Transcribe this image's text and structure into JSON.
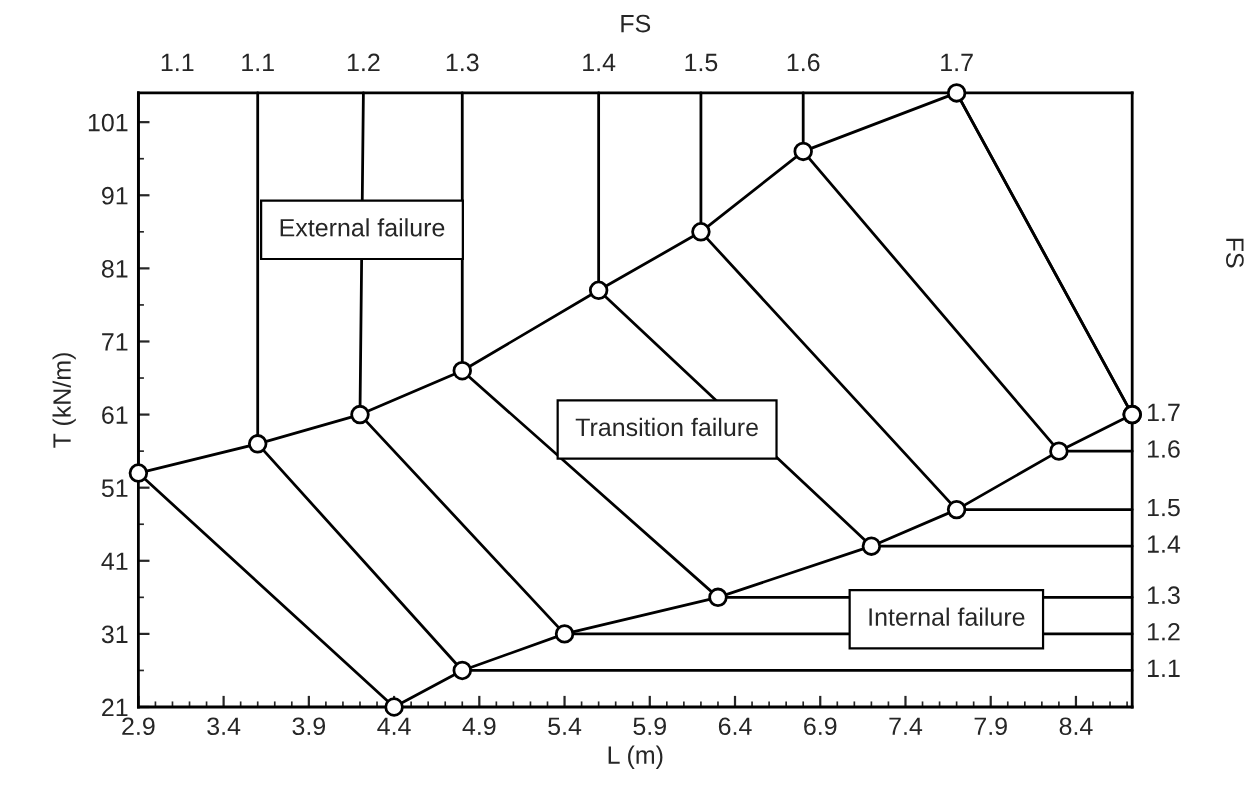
{
  "chart_data": {
    "type": "line",
    "xlabel": "L (m)",
    "ylabel": "T (kN/m)",
    "x2label": "FS",
    "y2label": "FS",
    "xlim": [
      2.9,
      8.73
    ],
    "ylim": [
      21,
      105
    ],
    "xticks": [
      2.9,
      3.4,
      3.9,
      4.4,
      4.9,
      5.4,
      5.9,
      6.4,
      6.9,
      7.4,
      7.9,
      8.4
    ],
    "yticks": [
      21,
      31,
      41,
      51,
      61,
      71,
      81,
      91,
      101
    ],
    "grid": false,
    "legend": false,
    "series": [
      {
        "color": "#000000",
        "marker": "circle",
        "x": [
          2.9,
          3.6,
          4.2,
          4.8,
          5.6,
          6.2,
          6.8,
          7.7,
          8.73
        ],
        "values": [
          53,
          57,
          61,
          67,
          78,
          86,
          97,
          105,
          61
        ]
      },
      {
        "color": "#000000",
        "marker": "circle",
        "x": [
          4.4,
          4.8,
          5.4,
          6.3,
          7.2,
          7.7,
          8.3,
          8.73
        ],
        "values": [
          21,
          26,
          31,
          36,
          43,
          48,
          56,
          61
        ]
      },
      {
        "name": "1.1",
        "color": "#000000",
        "x": [
          2.9,
          2.9,
          4.4
        ],
        "values": [
          105,
          53,
          21
        ]
      },
      {
        "name": "1.1",
        "color": "#000000",
        "x": [
          3.6,
          3.6,
          4.8,
          8.73
        ],
        "values": [
          105,
          57,
          26,
          26
        ]
      },
      {
        "name": "1.2",
        "color": "#000000",
        "x": [
          4.22,
          4.2,
          5.4,
          8.73
        ],
        "values": [
          105,
          61,
          31,
          31
        ]
      },
      {
        "name": "1.3",
        "color": "#000000",
        "x": [
          4.8,
          4.8,
          6.3,
          8.73
        ],
        "values": [
          105,
          67,
          36,
          36
        ]
      },
      {
        "name": "1.4",
        "color": "#000000",
        "x": [
          5.6,
          5.6,
          7.2,
          8.73
        ],
        "values": [
          105,
          78,
          43,
          43
        ]
      },
      {
        "name": "1.5",
        "color": "#000000",
        "x": [
          6.2,
          6.2,
          7.7,
          8.73
        ],
        "values": [
          105,
          86,
          48,
          48
        ]
      },
      {
        "name": "1.6",
        "color": "#000000",
        "x": [
          6.8,
          6.8,
          8.3,
          8.73
        ],
        "values": [
          105,
          97,
          56,
          56
        ]
      },
      {
        "name": "1.7",
        "color": "#000000",
        "x": [
          7.7,
          8.73
        ],
        "values": [
          105,
          61
        ]
      }
    ],
    "annotations": [
      "External failure",
      "Transition failure",
      "Internal failure"
    ]
  }
}
